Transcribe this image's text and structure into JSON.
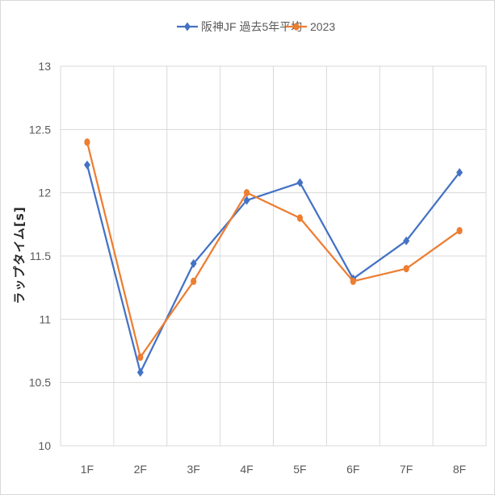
{
  "chart_data": {
    "type": "line",
    "title": "",
    "xlabel": "",
    "ylabel": "ラップタイム[s]",
    "categories": [
      "1F",
      "2F",
      "3F",
      "4F",
      "5F",
      "6F",
      "7F",
      "8F"
    ],
    "yticks": [
      "10",
      "10.5",
      "11",
      "11.5",
      "12",
      "12.5",
      "13"
    ],
    "ylim": [
      10,
      13
    ],
    "grid": true,
    "legend_position": "top",
    "series": [
      {
        "name": "阪神JF 過去5年平均",
        "color": "#4472c4",
        "marker": "diamond",
        "values": [
          12.22,
          10.58,
          11.44,
          11.94,
          12.08,
          11.32,
          11.62,
          12.16
        ]
      },
      {
        "name": "2023",
        "color": "#ed7d31",
        "marker": "circle",
        "values": [
          12.4,
          10.7,
          11.3,
          12.0,
          11.8,
          11.3,
          11.4,
          11.7
        ]
      }
    ]
  }
}
